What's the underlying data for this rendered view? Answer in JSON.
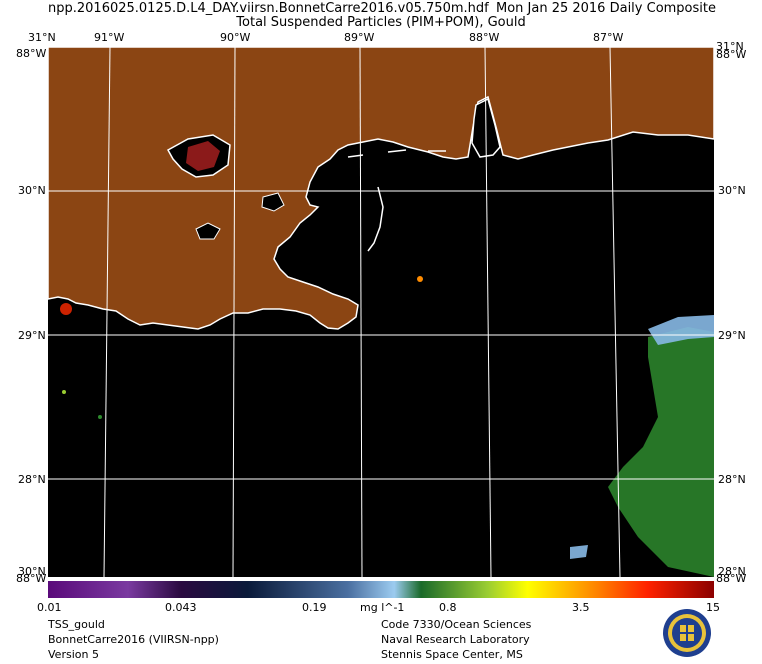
{
  "header": {
    "title_left": "npp.2016025.0125.D.L4_DAY.viirsn.BonnetCarre2016.v05.750m.hdf",
    "title_right": "Mon Jan 25 2016 Daily Composite",
    "subtitle": "Total Suspended Particles (PIM+POM), Gould"
  },
  "map": {
    "lon_labels": [
      "91°W",
      "90°W",
      "89°W",
      "88°W",
      "87°W"
    ],
    "lat_labels": [
      "31°N",
      "30°N",
      "29°N",
      "28°N",
      "28°N"
    ],
    "corner_labels": {
      "top_left": "31°N",
      "top_left_lon": "88°W",
      "top_right_lat": "31°N",
      "top_right_lon": "88°W",
      "bottom_left": "30°N",
      "bottom_left_lon": "88°W",
      "bottom_right_lat": "28°N",
      "bottom_right_lon": "88°W"
    },
    "colors": {
      "land": "#8b4513",
      "water": "#000000",
      "coast": "#ffffff",
      "grid": "#ffffff"
    }
  },
  "colorbar": {
    "labels": [
      "0.01",
      "0.043",
      "0.19",
      "mg l^-1",
      "0.8",
      "3.5",
      "15"
    ],
    "scale": "log"
  },
  "footer": {
    "left": [
      "TSS_gould",
      "BonnetCarre2016 (VIIRSN-npp)",
      "Version 5"
    ],
    "right": [
      "Code 7330/Ocean Sciences",
      "Naval Research Laboratory",
      "Stennis Space Center, MS"
    ]
  }
}
